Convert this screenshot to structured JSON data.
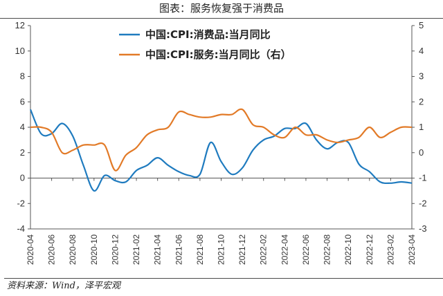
{
  "title": "图表：服务恢复强于消费品",
  "source": "资料来源：Wind，泽平宏观",
  "colors": {
    "blue": "#1f7bbf",
    "orange": "#e27a27",
    "axis": "#555555"
  },
  "chart_data": {
    "type": "line",
    "title": "图表：服务恢复强于消费品",
    "x": [
      "2020-04",
      "2020-05",
      "2020-06",
      "2020-07",
      "2020-08",
      "2020-09",
      "2020-10",
      "2020-11",
      "2020-12",
      "2021-01",
      "2021-02",
      "2021-03",
      "2021-04",
      "2021-05",
      "2021-06",
      "2021-07",
      "2021-08",
      "2021-09",
      "2021-10",
      "2021-11",
      "2021-12",
      "2022-01",
      "2022-02",
      "2022-03",
      "2022-04",
      "2022-05",
      "2022-06",
      "2022-07",
      "2022-08",
      "2022-09",
      "2022-10",
      "2022-11",
      "2022-12",
      "2023-01",
      "2023-02",
      "2023-03",
      "2023-04"
    ],
    "xtick_labels": [
      "2020-04",
      "2020-06",
      "2020-08",
      "2020-10",
      "2020-12",
      "2021-02",
      "2021-04",
      "2021-06",
      "2021-08",
      "2021-10",
      "2021-12",
      "2022-02",
      "2022-04",
      "2022-06",
      "2022-08",
      "2022-10",
      "2022-12",
      "2023-02",
      "2023-04"
    ],
    "left_axis": {
      "ylim": [
        -4,
        12
      ],
      "ticks": [
        "12",
        "10",
        "8",
        "6",
        "4",
        "2",
        "0",
        "-2",
        "-4"
      ]
    },
    "right_axis": {
      "ylim": [
        -3,
        5
      ],
      "ticks": [
        "5",
        "4",
        "3",
        "2",
        "1",
        "0",
        "-1",
        "-2",
        "-3"
      ]
    },
    "series": [
      {
        "name": "中国:CPI:消费品:当月同比",
        "axis": "left",
        "color": "#1f7bbf",
        "values": [
          5.4,
          3.5,
          3.5,
          4.3,
          3.3,
          1.0,
          -1.0,
          0.2,
          -0.2,
          -0.3,
          0.6,
          1.0,
          1.6,
          1.0,
          0.5,
          0.2,
          0.3,
          2.8,
          1.3,
          0.3,
          0.8,
          2.2,
          3.0,
          3.3,
          3.9,
          3.9,
          4.3,
          3.0,
          2.3,
          2.8,
          2.8,
          1.1,
          0.5,
          -0.3,
          -0.4,
          -0.3,
          -0.4
        ]
      },
      {
        "name": "中国:CPI:服务:当月同比（右）",
        "axis": "right",
        "color": "#e27a27",
        "values": [
          1.0,
          1.0,
          0.8,
          0.0,
          0.1,
          0.3,
          0.3,
          0.3,
          -0.7,
          -0.1,
          0.2,
          0.7,
          0.9,
          1.0,
          1.6,
          1.5,
          1.4,
          1.4,
          1.5,
          1.5,
          1.7,
          1.1,
          1.0,
          0.7,
          0.6,
          1.0,
          0.7,
          0.7,
          0.5,
          0.4,
          0.5,
          0.6,
          1.0,
          0.6,
          0.8,
          1.0,
          1.0
        ]
      }
    ],
    "legend_position": "top-center",
    "grid": false
  }
}
